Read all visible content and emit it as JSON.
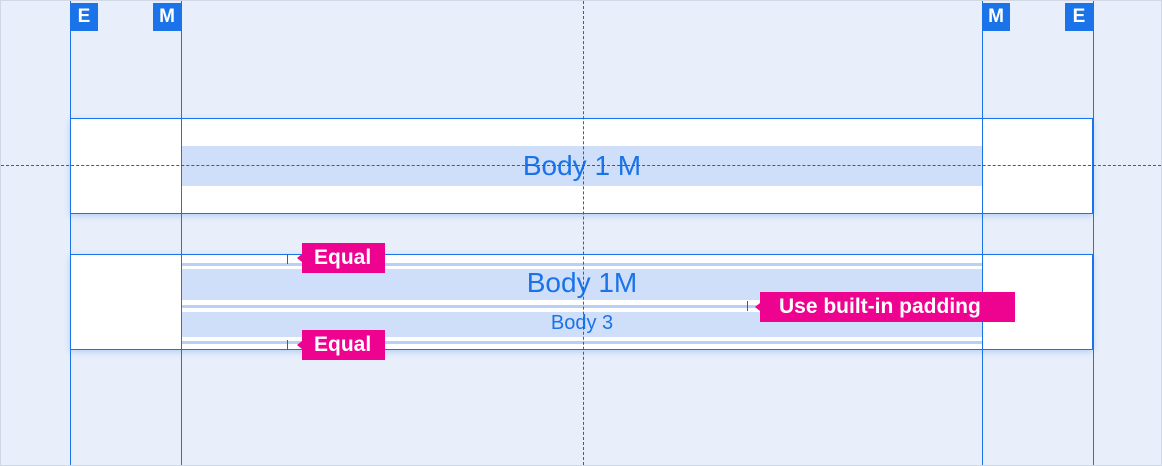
{
  "badges": {
    "left_edge": "E",
    "left_margin": "M",
    "right_margin": "M",
    "right_edge": "E"
  },
  "example1": {
    "text": "Body 1 M"
  },
  "example2": {
    "title": "Body 1M",
    "subtitle": "Body 3"
  },
  "annotations": {
    "top": "Equal",
    "bottom": "Equal",
    "padding": "Use built-in padding"
  },
  "colors": {
    "accent": "#1a73e8",
    "annotation": "#ee0290",
    "background": "#e8effb",
    "band": "#cfdffa"
  }
}
